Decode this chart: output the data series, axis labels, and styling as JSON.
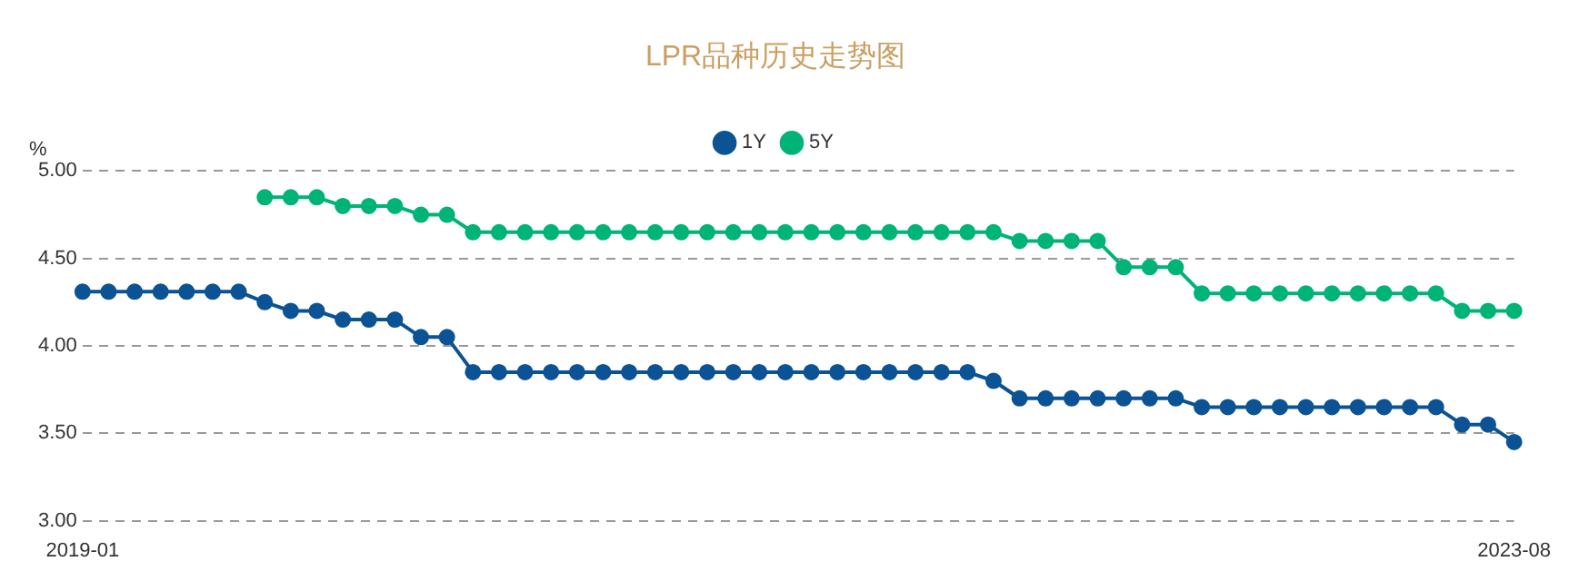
{
  "chart_data": {
    "type": "line",
    "title": "LPR品种历史走势图",
    "ylabel": "%",
    "categories": [
      "2019-01",
      null,
      null,
      null,
      null,
      null,
      null,
      null,
      null,
      null,
      null,
      null,
      null,
      null,
      null,
      null,
      null,
      null,
      null,
      null,
      null,
      null,
      null,
      null,
      null,
      null,
      null,
      null,
      null,
      null,
      null,
      null,
      null,
      null,
      null,
      null,
      null,
      null,
      null,
      null,
      null,
      null,
      null,
      null,
      null,
      null,
      null,
      null,
      null,
      null,
      null,
      null,
      null,
      null,
      null,
      "2023-08"
    ],
    "series": [
      {
        "name": "1Y",
        "color": "#0b5394",
        "values": [
          4.31,
          4.31,
          4.31,
          4.31,
          4.31,
          4.31,
          4.31,
          4.25,
          4.2,
          4.2,
          4.15,
          4.15,
          4.15,
          4.05,
          4.05,
          3.85,
          3.85,
          3.85,
          3.85,
          3.85,
          3.85,
          3.85,
          3.85,
          3.85,
          3.85,
          3.85,
          3.85,
          3.85,
          3.85,
          3.85,
          3.85,
          3.85,
          3.85,
          3.85,
          3.85,
          3.8,
          3.7,
          3.7,
          3.7,
          3.7,
          3.7,
          3.7,
          3.7,
          3.65,
          3.65,
          3.65,
          3.65,
          3.65,
          3.65,
          3.65,
          3.65,
          3.65,
          3.65,
          3.55,
          3.55,
          3.45
        ]
      },
      {
        "name": "5Y",
        "color": "#00b377",
        "values": [
          null,
          null,
          null,
          null,
          null,
          null,
          null,
          4.85,
          4.85,
          4.85,
          4.8,
          4.8,
          4.8,
          4.75,
          4.75,
          4.65,
          4.65,
          4.65,
          4.65,
          4.65,
          4.65,
          4.65,
          4.65,
          4.65,
          4.65,
          4.65,
          4.65,
          4.65,
          4.65,
          4.65,
          4.65,
          4.65,
          4.65,
          4.65,
          4.65,
          4.65,
          4.6,
          4.6,
          4.6,
          4.6,
          4.45,
          4.45,
          4.45,
          4.3,
          4.3,
          4.3,
          4.3,
          4.3,
          4.3,
          4.3,
          4.3,
          4.3,
          4.3,
          4.2,
          4.2,
          4.2
        ]
      }
    ],
    "ylim": [
      3,
      5
    ],
    "yticks": [
      {
        "value": 3,
        "label": "3.00"
      },
      {
        "value": 3.5,
        "label": "3.50"
      },
      {
        "value": 4,
        "label": "4.00"
      },
      {
        "value": 4.5,
        "label": "4.50"
      },
      {
        "value": 5,
        "label": "5.00"
      }
    ],
    "grid": "y",
    "legend": "top",
    "marker": "circle",
    "line_style": "solid"
  }
}
